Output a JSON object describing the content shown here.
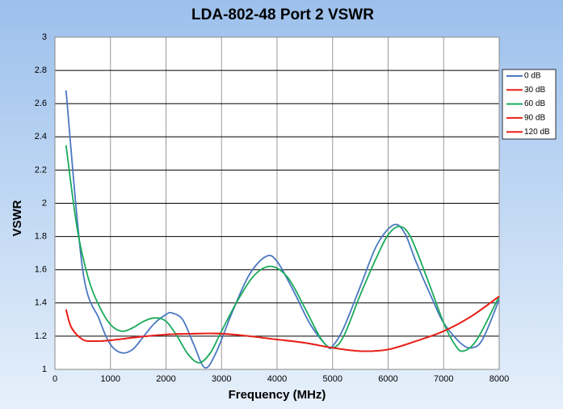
{
  "chart_data": {
    "type": "line",
    "title": "LDA-802-48 Port 2 VSWR",
    "x_label": "Frequency (MHz)",
    "y_label": "VSWR",
    "xlim": [
      0,
      8000
    ],
    "xticks": [
      0,
      1000,
      2000,
      3000,
      4000,
      5000,
      6000,
      7000,
      8000
    ],
    "ylim": [
      1,
      3
    ],
    "yticks": [
      1,
      1.2,
      1.4,
      1.6,
      1.8,
      2,
      2.2,
      2.4,
      2.6,
      2.8,
      3
    ],
    "grid": true,
    "legend": "right",
    "series": [
      {
        "name": "0 dB",
        "color": "#4a78c0",
        "x": [
          200,
          500,
          800,
          1000,
          1200,
          1400,
          1600,
          1800,
          2000,
          2100,
          2300,
          2500,
          2700,
          2900,
          3200,
          3500,
          3800,
          4000,
          4300,
          4600,
          4900,
          5000,
          5200,
          5500,
          5800,
          6100,
          6300,
          6500,
          6800,
          7000,
          7300,
          7500,
          7700,
          8000
        ],
        "values": [
          2.68,
          1.6,
          1.3,
          1.15,
          1.1,
          1.12,
          1.2,
          1.28,
          1.33,
          1.34,
          1.3,
          1.15,
          1.01,
          1.1,
          1.35,
          1.57,
          1.68,
          1.65,
          1.47,
          1.27,
          1.14,
          1.14,
          1.25,
          1.5,
          1.75,
          1.87,
          1.82,
          1.65,
          1.42,
          1.28,
          1.16,
          1.13,
          1.18,
          1.42
        ]
      },
      {
        "name": "30 dB",
        "color": "#e8201a",
        "x": [
          200,
          300,
          500,
          700,
          1000,
          1500,
          2000,
          2500,
          3000,
          3500,
          4000,
          4500,
          5000,
          5500,
          6000,
          6500,
          7000,
          7500,
          8000
        ],
        "values": [
          1.36,
          1.25,
          1.18,
          1.17,
          1.175,
          1.195,
          1.21,
          1.215,
          1.215,
          1.2,
          1.18,
          1.16,
          1.13,
          1.11,
          1.12,
          1.17,
          1.23,
          1.32,
          1.44
        ]
      },
      {
        "name": "60 dB",
        "color": "#1aaa5a",
        "x": [
          200,
          400,
          600,
          800,
          1000,
          1200,
          1400,
          1600,
          1800,
          2000,
          2200,
          2400,
          2600,
          2800,
          3000,
          3300,
          3600,
          3900,
          4200,
          4500,
          4800,
          5000,
          5200,
          5500,
          5800,
          6000,
          6200,
          6400,
          6700,
          7000,
          7200,
          7350,
          7600,
          8000
        ],
        "values": [
          2.35,
          1.85,
          1.55,
          1.38,
          1.27,
          1.23,
          1.25,
          1.29,
          1.31,
          1.29,
          1.2,
          1.09,
          1.04,
          1.1,
          1.23,
          1.42,
          1.57,
          1.62,
          1.55,
          1.37,
          1.18,
          1.13,
          1.2,
          1.45,
          1.68,
          1.81,
          1.86,
          1.8,
          1.55,
          1.28,
          1.15,
          1.11,
          1.18,
          1.44
        ]
      },
      {
        "name": "90 dB",
        "color": "#e8201a",
        "x": [
          200,
          300,
          500,
          700,
          1000,
          1500,
          2000,
          2500,
          3000,
          3500,
          4000,
          4500,
          5000,
          5500,
          6000,
          6500,
          7000,
          7500,
          8000
        ],
        "values": [
          1.36,
          1.25,
          1.18,
          1.17,
          1.175,
          1.195,
          1.21,
          1.215,
          1.215,
          1.2,
          1.18,
          1.16,
          1.13,
          1.11,
          1.12,
          1.17,
          1.23,
          1.32,
          1.44
        ]
      },
      {
        "name": "120 dB",
        "color": "#e8201a",
        "x": [
          200,
          300,
          500,
          700,
          1000,
          1500,
          2000,
          2500,
          3000,
          3500,
          4000,
          4500,
          5000,
          5500,
          6000,
          6500,
          7000,
          7500,
          8000
        ],
        "values": [
          1.36,
          1.25,
          1.18,
          1.17,
          1.175,
          1.195,
          1.21,
          1.215,
          1.215,
          1.2,
          1.18,
          1.16,
          1.13,
          1.11,
          1.12,
          1.17,
          1.23,
          1.32,
          1.44
        ]
      }
    ]
  }
}
